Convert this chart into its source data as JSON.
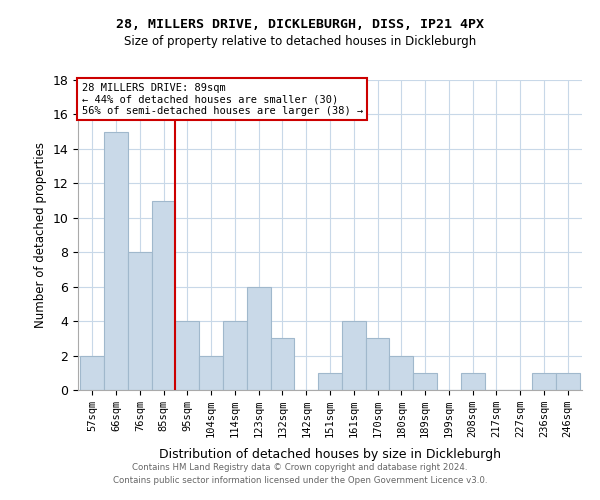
{
  "title": "28, MILLERS DRIVE, DICKLEBURGH, DISS, IP21 4PX",
  "subtitle": "Size of property relative to detached houses in Dickleburgh",
  "xlabel": "Distribution of detached houses by size in Dickleburgh",
  "ylabel": "Number of detached properties",
  "categories": [
    "57sqm",
    "66sqm",
    "76sqm",
    "85sqm",
    "95sqm",
    "104sqm",
    "114sqm",
    "123sqm",
    "132sqm",
    "142sqm",
    "151sqm",
    "161sqm",
    "170sqm",
    "180sqm",
    "189sqm",
    "199sqm",
    "208sqm",
    "217sqm",
    "227sqm",
    "236sqm",
    "246sqm"
  ],
  "values": [
    2,
    15,
    8,
    11,
    4,
    2,
    4,
    6,
    3,
    0,
    1,
    4,
    3,
    2,
    1,
    0,
    1,
    0,
    0,
    1,
    1
  ],
  "bar_color": "#c9d9e8",
  "bar_edgecolor": "#a0b8cc",
  "vline_x_index": 3.5,
  "vline_color": "#cc0000",
  "annotation_title": "28 MILLERS DRIVE: 89sqm",
  "annotation_line1": "← 44% of detached houses are smaller (30)",
  "annotation_line2": "56% of semi-detached houses are larger (38) →",
  "annotation_box_edgecolor": "#cc0000",
  "ylim": [
    0,
    18
  ],
  "yticks": [
    0,
    2,
    4,
    6,
    8,
    10,
    12,
    14,
    16,
    18
  ],
  "footer1": "Contains HM Land Registry data © Crown copyright and database right 2024.",
  "footer2": "Contains public sector information licensed under the Open Government Licence v3.0.",
  "background_color": "#ffffff",
  "grid_color": "#c8d8e8"
}
